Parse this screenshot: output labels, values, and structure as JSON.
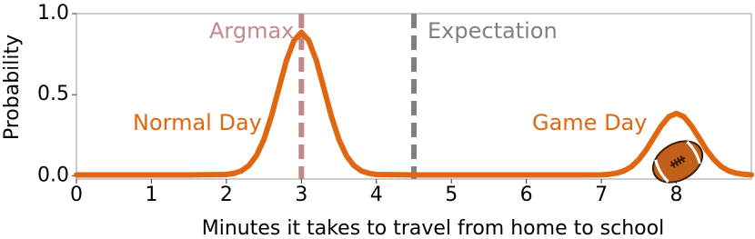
{
  "chart_data": {
    "type": "line",
    "xlabel": "Minutes it takes to travel from home to school",
    "ylabel": "Probability",
    "x": [
      0,
      0.5,
      1,
      1.5,
      2,
      2.1,
      2.2,
      2.3,
      2.4,
      2.5,
      2.6,
      2.7,
      2.8,
      2.9,
      3,
      3.1,
      3.2,
      3.3,
      3.4,
      3.5,
      3.6,
      3.7,
      3.8,
      3.9,
      4,
      4.5,
      5,
      5.5,
      6,
      6.5,
      7,
      7.1,
      7.2,
      7.3,
      7.4,
      7.5,
      7.6,
      7.7,
      7.8,
      7.9,
      8,
      8.1,
      8.2,
      8.3,
      8.4,
      8.5,
      8.6,
      8.7,
      8.8,
      8.9,
      9
    ],
    "series": [
      {
        "color": "#e0660f",
        "values": [
          0.005,
          0.005,
          0.005,
          0.005,
          0.008,
          0.015,
          0.03,
          0.063,
          0.124,
          0.224,
          0.367,
          0.539,
          0.71,
          0.833,
          0.885,
          0.833,
          0.71,
          0.539,
          0.367,
          0.224,
          0.124,
          0.063,
          0.03,
          0.015,
          0.008,
          0.005,
          0.005,
          0.005,
          0.005,
          0.005,
          0.006,
          0.009,
          0.016,
          0.03,
          0.056,
          0.1,
          0.161,
          0.236,
          0.309,
          0.364,
          0.385,
          0.364,
          0.309,
          0.236,
          0.161,
          0.1,
          0.056,
          0.03,
          0.016,
          0.009,
          0.006
        ]
      }
    ],
    "xlim": [
      0,
      9
    ],
    "ylim": [
      -0.02,
      1.0
    ],
    "xticks": [
      0,
      1,
      2,
      3,
      4,
      5,
      6,
      7,
      8
    ],
    "yticks": [
      {
        "value": 0,
        "label": "0.0"
      },
      {
        "value": 0.5,
        "label": "0.5"
      },
      {
        "value": 1,
        "label": "1.0"
      }
    ],
    "vlines": [
      {
        "x": 3,
        "label": "Argmax",
        "color": "#c08a8a"
      },
      {
        "x": 4.5,
        "label": "Expectation",
        "color": "#808080"
      }
    ],
    "annotations": [
      {
        "text": "Normal Day",
        "color": "#e0660f"
      },
      {
        "text": "Game Day",
        "color": "#e0660f"
      }
    ]
  }
}
